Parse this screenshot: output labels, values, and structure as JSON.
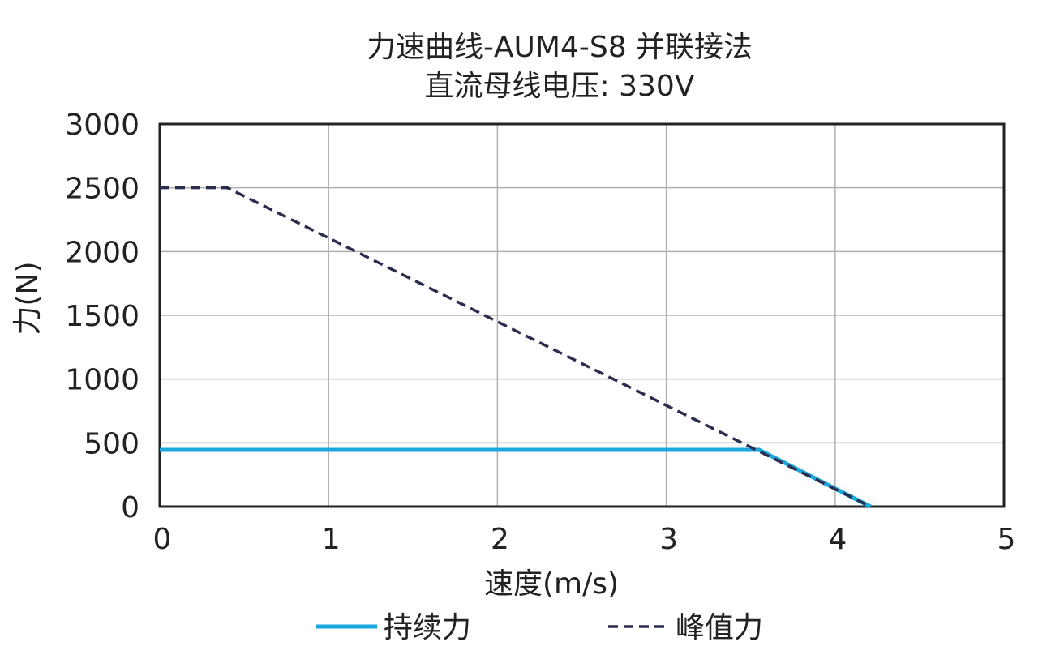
{
  "chart_data": {
    "type": "line",
    "title": "力速曲线-AUM4-S8 并联接法",
    "subtitle": "直流母线电压: 330V",
    "x_label": "速度(m/s)",
    "y_label": "力(N)",
    "xlim": [
      0,
      5
    ],
    "xticks": [
      0,
      1,
      2,
      3,
      4,
      5
    ],
    "ylim": [
      0,
      3000
    ],
    "yticks": [
      0,
      500,
      1000,
      1500,
      2000,
      2500,
      3000
    ],
    "grid": true,
    "legend": "bottom",
    "series": [
      {
        "name": "持续力",
        "color": "#1ba6de",
        "dash": false,
        "x": [
          0,
          3.55,
          4.21
        ],
        "values": [
          445,
          445,
          0
        ]
      },
      {
        "name": "峰值力",
        "color": "#2b2d4e",
        "dash": true,
        "x": [
          0,
          0.4,
          4.21
        ],
        "values": [
          2500,
          2500,
          0
        ]
      }
    ]
  }
}
